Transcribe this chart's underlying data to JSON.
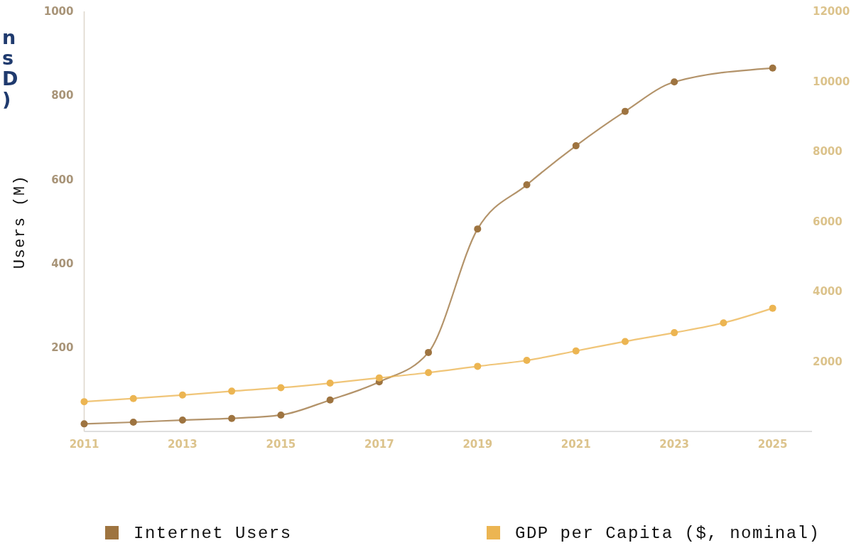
{
  "chart_data": {
    "type": "line",
    "title": "n\ns\nD\n)",
    "ylabel": "Users (M)",
    "xlim": [
      2011,
      2025.8
    ],
    "xticks": [
      2011,
      2013,
      2015,
      2017,
      2019,
      2021,
      2023,
      2025
    ],
    "ylim": [
      0,
      1000
    ],
    "yticks": [
      200,
      400,
      600,
      800,
      1000
    ],
    "y2lim": [
      0,
      12000
    ],
    "y2ticks": [
      2000,
      4000,
      6000,
      8000,
      10000,
      12000
    ],
    "series": [
      {
        "name": "Internet Users",
        "color": "#9e7440",
        "x": [
          2011,
          2012,
          2013,
          2014,
          2015,
          2016,
          2017,
          2018,
          2019,
          2020,
          2021,
          2022,
          2023,
          2025
        ],
        "values": [
          18,
          22,
          27,
          31,
          39,
          75,
          118,
          188,
          482,
          587,
          680,
          762,
          832,
          865
        ]
      },
      {
        "name": "GDP per Capita ($, nominal)",
        "color": "#ecb552",
        "axis": "y2",
        "x": [
          2011,
          2012,
          2013,
          2014,
          2015,
          2016,
          2017,
          2018,
          2019,
          2020,
          2021,
          2022,
          2023,
          2024,
          2025
        ],
        "values": [
          850,
          940,
          1040,
          1150,
          1250,
          1380,
          1530,
          1680,
          1860,
          2030,
          2300,
          2570,
          2820,
          3100,
          3520
        ]
      }
    ],
    "legend": "bottom",
    "marker": "circle"
  }
}
